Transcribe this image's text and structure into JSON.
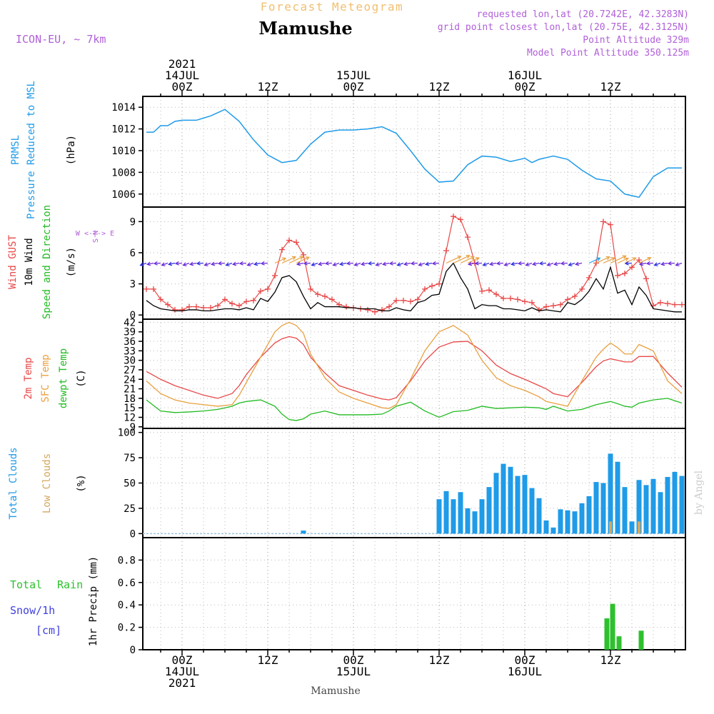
{
  "header": {
    "subtitle": "Forecast Meteogram",
    "title": "Mamushe",
    "model": "ICON-EU, ~ 7km",
    "requested": "requested lon,lat (20.7242E, 42.3283N)",
    "grid_point": "grid point closest lon,lat (20.75E, 42.3125N)",
    "point_altitude": "Point Altitude 329m",
    "model_altitude": "Model Point Altitude 350.125m",
    "footer_station": "Mamushe",
    "watermark": "by Angel"
  },
  "time_axis": {
    "top_labels": [
      {
        "h": 0,
        "lines": [
          "2021",
          "14JUL",
          "00Z"
        ]
      },
      {
        "h": 12,
        "lines": [
          "12Z"
        ]
      },
      {
        "h": 24,
        "lines": [
          "15JUL",
          "00Z"
        ]
      },
      {
        "h": 36,
        "lines": [
          "12Z"
        ]
      },
      {
        "h": 48,
        "lines": [
          "16JUL",
          "00Z"
        ]
      },
      {
        "h": 60,
        "lines": [
          "12Z"
        ]
      }
    ],
    "bottom_labels": [
      {
        "h": 0,
        "lines": [
          "00Z",
          "14JUL",
          "2021"
        ]
      },
      {
        "h": 12,
        "lines": [
          "12Z"
        ]
      },
      {
        "h": 24,
        "lines": [
          "00Z",
          "15JUL"
        ]
      },
      {
        "h": 36,
        "lines": [
          "12Z"
        ]
      },
      {
        "h": 48,
        "lines": [
          "00Z",
          "16JUL"
        ]
      },
      {
        "h": 60,
        "lines": [
          "12Z"
        ]
      }
    ],
    "xlim_hours": [
      -5.5,
      70.5
    ]
  },
  "colors": {
    "pressure": "#1f9be8",
    "gust": "#e84848",
    "wind": "#000000",
    "temp2m": "#e84848",
    "sfctemp": "#e8a040",
    "dewpt": "#22bb22",
    "total_cloud": "#1f9be8",
    "low_cloud": "#d4a860",
    "rain": "#2ec02e",
    "snow": "#4040e0",
    "header_purple": "#b060d8",
    "header_orange": "#f0c070"
  },
  "chart_data": [
    {
      "type": "line",
      "panel": "pressure",
      "ylabel_lines": [
        "PRMSL",
        "Pressure Reduced to MSL"
      ],
      "unit": "(hPa)",
      "ylim": [
        1004.8,
        1015
      ],
      "yticks": [
        1006,
        1008,
        1010,
        1012,
        1014
      ],
      "grid": true,
      "x_hours": [
        -5,
        -4,
        -3,
        -2,
        -1,
        0,
        1,
        2,
        3,
        4,
        5,
        6,
        8,
        10,
        12,
        14,
        16,
        18,
        20,
        22,
        24,
        26,
        28,
        30,
        32,
        34,
        36,
        38,
        40,
        42,
        44,
        46,
        48,
        49,
        50,
        52,
        54,
        56,
        58,
        60,
        62,
        64,
        66,
        68,
        70
      ],
      "series": [
        {
          "name": "PRMSL",
          "values": [
            1011.7,
            1011.7,
            1012.3,
            1012.3,
            1012.7,
            1012.8,
            1012.8,
            1012.8,
            1013.0,
            1013.2,
            1013.5,
            1013.8,
            1012.7,
            1011.0,
            1009.6,
            1008.9,
            1009.1,
            1010.6,
            1011.7,
            1011.9,
            1011.9,
            1012.0,
            1012.2,
            1011.6,
            1010.0,
            1008.3,
            1007.1,
            1007.2,
            1008.7,
            1009.5,
            1009.4,
            1009.0,
            1009.3,
            1008.9,
            1009.2,
            1009.5,
            1009.2,
            1008.2,
            1007.4,
            1007.2,
            1006.0,
            1005.7,
            1007.6,
            1008.4,
            1008.4
          ]
        }
      ]
    },
    {
      "type": "line",
      "panel": "wind",
      "ylabel_lines": [
        "Wind GUST",
        "10m Wind",
        "Speed and Direction"
      ],
      "unit": "(m/s)",
      "compass": [
        "N",
        "W <-|-> E",
        "S"
      ],
      "ylim": [
        -0.4,
        10.4
      ],
      "yticks": [
        0,
        3,
        6,
        9
      ],
      "grid": true,
      "x_hours": [
        -5,
        -4,
        -3,
        -2,
        -1,
        0,
        1,
        2,
        3,
        4,
        5,
        6,
        7,
        8,
        9,
        10,
        11,
        12,
        13,
        14,
        15,
        16,
        17,
        18,
        19,
        20,
        21,
        22,
        23,
        24,
        25,
        26,
        27,
        28,
        29,
        30,
        31,
        32,
        33,
        34,
        35,
        36,
        37,
        38,
        39,
        40,
        41,
        42,
        43,
        44,
        45,
        46,
        47,
        48,
        49,
        50,
        51,
        52,
        53,
        54,
        55,
        56,
        57,
        58,
        59,
        60,
        61,
        62,
        63,
        64,
        65,
        66,
        67,
        68,
        69,
        70
      ],
      "series": [
        {
          "name": "Wind GUST",
          "values": [
            2.5,
            2.5,
            1.5,
            1.0,
            0.5,
            0.5,
            0.8,
            0.8,
            0.7,
            0.7,
            0.9,
            1.5,
            1.1,
            0.9,
            1.3,
            1.4,
            2.3,
            2.5,
            3.8,
            6.3,
            7.2,
            7.0,
            5.8,
            2.5,
            2.0,
            1.8,
            1.5,
            1.0,
            0.8,
            0.7,
            0.6,
            0.5,
            0.3,
            0.5,
            0.8,
            1.4,
            1.4,
            1.3,
            1.5,
            2.5,
            2.8,
            3.0,
            6.2,
            9.5,
            9.2,
            7.5,
            5.0,
            2.3,
            2.4,
            2.0,
            1.6,
            1.6,
            1.5,
            1.3,
            1.2,
            0.5,
            0.8,
            0.9,
            1.0,
            1.5,
            1.8,
            2.5,
            3.6,
            5.0,
            9.0,
            8.7,
            3.8,
            4.0,
            4.6,
            5.3,
            3.5,
            0.9,
            1.2,
            1.1,
            1.0,
            1.0
          ]
        },
        {
          "name": "10m Wind",
          "values": [
            1.4,
            0.9,
            0.6,
            0.5,
            0.4,
            0.4,
            0.5,
            0.5,
            0.4,
            0.4,
            0.5,
            0.6,
            0.6,
            0.5,
            0.7,
            0.5,
            1.6,
            1.3,
            2.2,
            3.6,
            3.8,
            3.2,
            1.8,
            0.6,
            1.2,
            0.8,
            0.8,
            0.8,
            0.7,
            0.7,
            0.6,
            0.6,
            0.6,
            0.4,
            0.4,
            0.7,
            0.5,
            0.4,
            1.2,
            1.4,
            1.9,
            2.0,
            4.2,
            5.0,
            3.6,
            2.5,
            0.6,
            1.0,
            0.9,
            0.9,
            0.6,
            0.6,
            0.5,
            0.4,
            0.7,
            0.4,
            0.5,
            0.4,
            0.3,
            1.2,
            1.0,
            1.5,
            2.3,
            3.5,
            2.5,
            4.6,
            2.1,
            2.4,
            1.0,
            2.7,
            1.9,
            0.6,
            0.5,
            0.4,
            0.3,
            0.3
          ]
        }
      ]
    },
    {
      "type": "line",
      "panel": "temperature",
      "ylabel_lines": [
        "2m Temp",
        "SFC Temp",
        "dewpt Temp"
      ],
      "unit": "(C)",
      "ylim": [
        8.5,
        43
      ],
      "yticks": [
        9,
        12,
        15,
        18,
        21,
        24,
        27,
        30,
        33,
        36,
        39,
        42
      ],
      "grid": true,
      "x_hours": [
        -5,
        -3,
        -1,
        1,
        3,
        5,
        7,
        8,
        9,
        11,
        13,
        14,
        15,
        16,
        17,
        18,
        20,
        22,
        24,
        26,
        28,
        29,
        30,
        32,
        34,
        36,
        38,
        40,
        42,
        44,
        46,
        48,
        50,
        51,
        52,
        54,
        56,
        58,
        59,
        60,
        61,
        62,
        63,
        64,
        66,
        68,
        70
      ],
      "series": [
        {
          "name": "2m Temp",
          "values": [
            26.5,
            24,
            22,
            20.5,
            19,
            18,
            19.5,
            22,
            25.5,
            31,
            35.5,
            36.8,
            37.5,
            37,
            35,
            31,
            26,
            22,
            20.5,
            19,
            17.8,
            17.5,
            18.2,
            23.5,
            29.8,
            34.2,
            35.8,
            36,
            33,
            28.5,
            25.8,
            24,
            22,
            21,
            19.5,
            18.5,
            23,
            28,
            29.8,
            30.5,
            30,
            29.5,
            29.5,
            31.2,
            31.2,
            26,
            21.5
          ]
        },
        {
          "name": "SFC Temp",
          "values": [
            23.5,
            19.5,
            17.5,
            16.5,
            16,
            15.5,
            16,
            19,
            23,
            31,
            39,
            41,
            42,
            41,
            38.5,
            32,
            24.5,
            20,
            18,
            16.5,
            15,
            14.8,
            16,
            24,
            33,
            39,
            41,
            38,
            30,
            24.5,
            22,
            20.5,
            18.5,
            17,
            16.5,
            15.5,
            23.5,
            31,
            33.5,
            35.5,
            34,
            32,
            32,
            35,
            33,
            23.5,
            19.5
          ]
        },
        {
          "name": "dewpt Temp",
          "values": [
            17.5,
            14,
            13.5,
            13.7,
            14,
            14.5,
            15.5,
            16.5,
            17,
            17.5,
            15.5,
            13,
            11.3,
            11,
            11.5,
            13,
            14,
            12.8,
            12.8,
            12.8,
            13,
            14,
            15.5,
            16.8,
            14,
            12,
            13.8,
            14.2,
            15.5,
            14.8,
            15,
            15.2,
            15,
            14.5,
            15.5,
            14,
            14.5,
            16,
            16.5,
            17,
            16.3,
            15.5,
            15.2,
            16.5,
            17.5,
            18,
            16.5
          ]
        }
      ]
    },
    {
      "type": "bar",
      "panel": "clouds",
      "ylabel_lines": [
        "Total Clouds",
        "Low Clouds"
      ],
      "unit": "(%)",
      "ylim": [
        -4,
        104
      ],
      "yticks": [
        0,
        25,
        50,
        75,
        100
      ],
      "grid": true,
      "x_hours": [
        17,
        36,
        37,
        38,
        39,
        40,
        41,
        42,
        43,
        44,
        45,
        46,
        47,
        48,
        49,
        50,
        51,
        52,
        53,
        54,
        55,
        56,
        57,
        58,
        59,
        60,
        61,
        62,
        63,
        64,
        65,
        66,
        67,
        68,
        69,
        70
      ],
      "series": [
        {
          "name": "Total Clouds",
          "values": [
            3,
            34,
            42,
            34,
            41,
            25,
            22,
            34,
            46,
            60,
            69,
            66,
            57,
            58,
            45,
            35,
            13,
            6,
            24,
            23,
            22,
            30,
            37,
            51,
            50,
            79,
            71,
            46,
            12,
            53,
            48,
            54,
            41,
            56,
            61,
            57
          ]
        },
        {
          "name": "Low Clouds",
          "values": [
            0,
            0,
            0,
            0,
            0,
            0,
            0,
            0,
            0,
            0,
            0,
            0,
            0,
            0,
            0,
            0,
            0,
            0,
            0,
            0,
            0,
            0,
            0,
            0,
            0,
            12,
            0,
            0,
            0,
            12,
            0,
            0,
            0,
            0,
            0,
            0
          ]
        }
      ]
    },
    {
      "type": "bar",
      "panel": "precip",
      "legend_rain": [
        "Total",
        "Rain"
      ],
      "legend_snow": [
        "Snow/1h",
        "[cm]"
      ],
      "ylabel": "1hr Precip (mm)",
      "ylim": [
        0,
        1.0
      ],
      "yticks": [
        0,
        0.2,
        0.4,
        0.6,
        0.8
      ],
      "grid": true,
      "x_hours": [
        59.5,
        60.3,
        61.2,
        64.3
      ],
      "series": [
        {
          "name": "Total Rain",
          "values": [
            0.28,
            0.41,
            0.12,
            0.17
          ]
        }
      ]
    }
  ]
}
